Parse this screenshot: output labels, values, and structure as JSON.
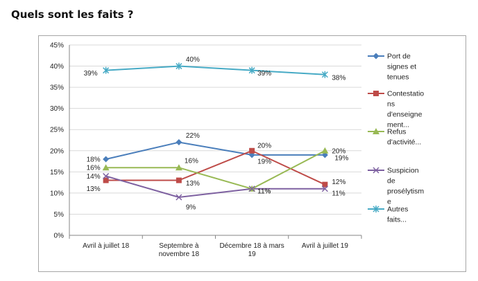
{
  "page": {
    "title": "Quels sont les faits ?"
  },
  "chart_data": {
    "type": "line",
    "categories": [
      [
        "Avril à juillet 18"
      ],
      [
        "Septembre à",
        "novembre 18"
      ],
      [
        "Décembre 18 à mars",
        "19"
      ],
      [
        "Avril à juillet 19"
      ]
    ],
    "ylim": [
      0,
      45
    ],
    "y_ticks": [
      0,
      5,
      10,
      15,
      20,
      25,
      30,
      35,
      40,
      45
    ],
    "y_tick_labels": [
      "0%",
      "5%",
      "10%",
      "15%",
      "20%",
      "25%",
      "30%",
      "35%",
      "40%",
      "45%"
    ],
    "grid": true,
    "legend_position": "right",
    "series": [
      {
        "name": [
          "Port de",
          "signes et",
          "tenues"
        ],
        "color": "#4a7ebb",
        "marker": "diamond",
        "values": [
          18,
          22,
          19,
          19
        ],
        "labels": [
          "18%",
          "22%",
          "19%",
          "19%"
        ]
      },
      {
        "name": [
          "Contestatio",
          "ns",
          "d'enseigne",
          "ment..."
        ],
        "color": "#be4b48",
        "marker": "square",
        "values": [
          13,
          13,
          20,
          12
        ],
        "labels": [
          "13%",
          "13%",
          "20%",
          "12%"
        ]
      },
      {
        "name": [
          "Refus",
          "d'activité..."
        ],
        "color": "#98b954",
        "marker": "triangle",
        "values": [
          16,
          16,
          11,
          20
        ],
        "labels": [
          "16%",
          "16%",
          "11%",
          "20%"
        ]
      },
      {
        "name": [
          "Suspicion",
          "de",
          "prosélytism",
          "e"
        ],
        "color": "#7d60a0",
        "marker": "x",
        "values": [
          14,
          9,
          11,
          11
        ],
        "labels": [
          "14%",
          "9%",
          "11%",
          "11%"
        ]
      },
      {
        "name": [
          "Autres",
          "faits..."
        ],
        "color": "#46aac5",
        "marker": "star",
        "values": [
          39,
          40,
          39,
          38
        ],
        "labels": [
          "39%",
          "40%",
          "39%",
          "38%"
        ]
      }
    ]
  }
}
